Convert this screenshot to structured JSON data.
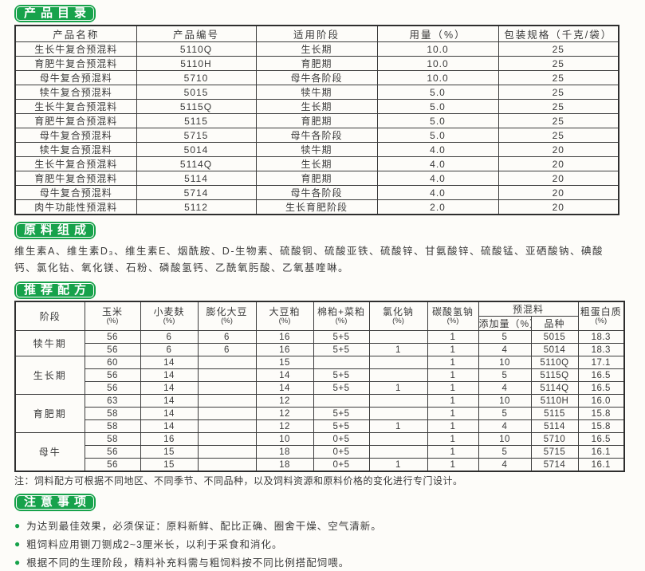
{
  "accent_green": "#17a24b",
  "catalog": {
    "badge": "产品目录",
    "table": {
      "headers": [
        "产品名称",
        "产品编号",
        "适用阶段",
        "用量（%）",
        "包装规格（千克/袋）"
      ],
      "rows": [
        [
          "生长牛复合预混料",
          "5110Q",
          "生长期",
          "10.0",
          "25"
        ],
        [
          "育肥牛复合预混料",
          "5110H",
          "育肥期",
          "10.0",
          "25"
        ],
        [
          "母牛复合预混料",
          "5710",
          "母牛各阶段",
          "10.0",
          "25"
        ],
        [
          "犊牛复合预混料",
          "5015",
          "犊牛期",
          "5.0",
          "25"
        ],
        [
          "生长牛复合预混料",
          "5115Q",
          "生长期",
          "5.0",
          "25"
        ],
        [
          "育肥牛复合预混料",
          "5115",
          "育肥期",
          "5.0",
          "25"
        ],
        [
          "母牛复合预混料",
          "5715",
          "母牛各阶段",
          "5.0",
          "25"
        ],
        [
          "犊牛复合预混料",
          "5014",
          "犊牛期",
          "4.0",
          "20"
        ],
        [
          "生长牛复合预混料",
          "5114Q",
          "生长期",
          "4.0",
          "20"
        ],
        [
          "育肥牛复合预混料",
          "5114",
          "育肥期",
          "4.0",
          "20"
        ],
        [
          "母牛复合预混料",
          "5714",
          "母牛各阶段",
          "4.0",
          "20"
        ],
        [
          "肉牛功能性预混料",
          "5112",
          "生长育肥阶段",
          "2.0",
          "20"
        ]
      ]
    }
  },
  "ingredients": {
    "badge": "原料组成",
    "text": "维生素A、维生素D₃、维生素E、烟酰胺、D-生物素、硫酸铜、硫酸亚铁、硫酸锌、甘氨酸锌、硫酸锰、亚硒酸钠、碘酸钙、氯化钴、氧化镁、石粉、磷酸氢钙、乙酰氧肟酸、乙氧基喹啉。"
  },
  "formula": {
    "badge": "推荐配方",
    "stage_label": "阶段",
    "cols": [
      {
        "name": "玉米",
        "unit": "(%)"
      },
      {
        "name": "小麦麸",
        "unit": "(%)"
      },
      {
        "name": "膨化大豆",
        "unit": "(%)"
      },
      {
        "name": "大豆粕",
        "unit": "(%)"
      },
      {
        "name": "棉粕+菜粕",
        "unit": "(%)"
      },
      {
        "name": "氯化钠",
        "unit": "(%)"
      },
      {
        "name": "碳酸氢钠",
        "unit": "(%)"
      }
    ],
    "premix": {
      "label": "预混料",
      "sub": [
        "添加量（%）",
        "品种"
      ]
    },
    "protein": {
      "name": "粗蛋白质",
      "unit": "(%)"
    },
    "groups": [
      {
        "stage": "犊牛期",
        "rows": [
          [
            "56",
            "6",
            "6",
            "16",
            "5+5",
            "",
            "1",
            "5",
            "5015",
            "18.3"
          ],
          [
            "56",
            "6",
            "6",
            "16",
            "5+5",
            "1",
            "1",
            "4",
            "5014",
            "18.3"
          ]
        ]
      },
      {
        "stage": "生长期",
        "rows": [
          [
            "60",
            "14",
            "",
            "15",
            "",
            "",
            "1",
            "10",
            "5110Q",
            "17.1"
          ],
          [
            "56",
            "14",
            "",
            "14",
            "5+5",
            "",
            "1",
            "5",
            "5115Q",
            "16.5"
          ],
          [
            "56",
            "14",
            "",
            "14",
            "5+5",
            "1",
            "1",
            "4",
            "5114Q",
            "16.5"
          ]
        ]
      },
      {
        "stage": "育肥期",
        "rows": [
          [
            "63",
            "14",
            "",
            "12",
            "",
            "",
            "1",
            "10",
            "5110H",
            "16.0"
          ],
          [
            "58",
            "14",
            "",
            "12",
            "5+5",
            "",
            "1",
            "5",
            "5115",
            "15.8"
          ],
          [
            "58",
            "14",
            "",
            "12",
            "5+5",
            "1",
            "1",
            "4",
            "5114",
            "15.8"
          ]
        ]
      },
      {
        "stage": "母牛",
        "rows": [
          [
            "58",
            "16",
            "",
            "10",
            "0+5",
            "",
            "1",
            "10",
            "5710",
            "16.5"
          ],
          [
            "56",
            "15",
            "",
            "18",
            "0+5",
            "",
            "1",
            "5",
            "5715",
            "16.1"
          ],
          [
            "56",
            "15",
            "",
            "18",
            "0+5",
            "1",
            "1",
            "4",
            "5714",
            "16.1"
          ]
        ]
      }
    ],
    "note": "注：饲料配方可根据不同地区、不同季节、不同品种，以及饲料资源和原料价格的变化进行专门设计。"
  },
  "notices": {
    "badge": "注意事项",
    "bullet_icon": "●",
    "items": [
      "为达到最佳效果，必须保证：原料新鲜、配比正确、圈舍干燥、空气清新。",
      "粗饲料应用铡刀铡成2~3厘米长，以利于采食和消化。",
      "根据不同的生理阶段，精料补充料需与粗饲料按不同比例搭配饲喂。"
    ]
  }
}
